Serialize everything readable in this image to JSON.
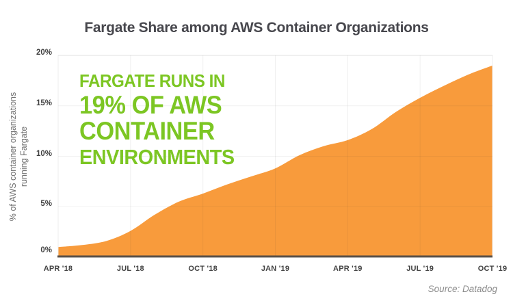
{
  "source": "Source: Datadog",
  "annotation": {
    "lines": [
      "FARGATE RUNS IN",
      "19% OF AWS",
      "CONTAINER",
      "ENVIRONMENTS"
    ],
    "color": "#7cc623"
  },
  "chart_data": {
    "type": "area",
    "title": "Fargate Share among AWS Container Organizations",
    "ylabel": "% of AWS container organizations running Fargate",
    "ylabel_lines": [
      "% of AWS container organizations",
      "running Fargate"
    ],
    "xlabel": "",
    "x": [
      "APR '18",
      "MAY '18",
      "JUN '18",
      "JUL '18",
      "AUG '18",
      "SEP '18",
      "OCT '18",
      "NOV '18",
      "DEC '18",
      "JAN '19",
      "FEB '19",
      "MAR '19",
      "APR '19",
      "MAY '19",
      "JUN '19",
      "JUL '19",
      "AUG '19",
      "SEP '19",
      "OCT '19"
    ],
    "values": [
      1.0,
      1.2,
      1.6,
      2.6,
      4.2,
      5.5,
      6.3,
      7.2,
      8.0,
      8.8,
      10.1,
      11.0,
      11.6,
      12.7,
      14.4,
      15.8,
      17.0,
      18.1,
      19.0
    ],
    "x_tick_every": 3,
    "x_tick_labels": [
      "APR '18",
      "JUL '18",
      "OCT '18",
      "JAN '19",
      "APR '19",
      "JUL '19",
      "OCT '19"
    ],
    "y_ticks": [
      {
        "value": 0,
        "label": "0%"
      },
      {
        "value": 5,
        "label": "5%"
      },
      {
        "value": 10,
        "label": "10%"
      },
      {
        "value": 15,
        "label": "15%"
      },
      {
        "value": 20,
        "label": "20%"
      }
    ],
    "ylim": [
      0,
      20
    ],
    "grid": true,
    "legend_position": "none",
    "area_color": "#f89b3c",
    "baseline_color": "#5a5149",
    "grid_color": "#ececec",
    "title_color": "#47474d",
    "tick_color": "#414141"
  }
}
